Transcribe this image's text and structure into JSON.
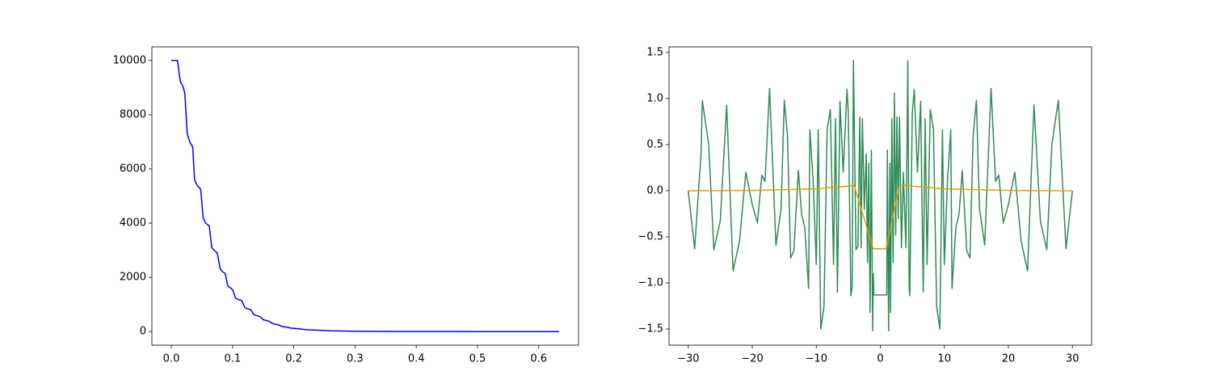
{
  "chart_data": [
    {
      "type": "line",
      "series": [
        {
          "color": "#0000ff",
          "x": [
            0,
            0.01,
            0.013,
            0.015,
            0.019,
            0.022,
            0.026,
            0.03,
            0.035,
            0.038,
            0.042,
            0.048,
            0.052,
            0.056,
            0.062,
            0.066,
            0.07,
            0.075,
            0.08,
            0.084,
            0.088,
            0.092,
            0.096,
            0.1,
            0.105,
            0.11,
            0.115,
            0.12,
            0.125,
            0.13,
            0.135,
            0.14,
            0.145,
            0.15,
            0.155,
            0.16,
            0.165,
            0.17,
            0.175,
            0.18,
            0.185,
            0.19,
            0.195,
            0.2,
            0.21,
            0.22,
            0.24,
            0.26,
            0.3,
            0.35,
            0.4,
            0.45,
            0.5,
            0.55,
            0.633
          ],
          "values": [
            10000,
            10000,
            9500,
            9200,
            9050,
            8800,
            7300,
            7000,
            6800,
            5600,
            5400,
            5250,
            4200,
            4000,
            3900,
            3100,
            3000,
            2900,
            2300,
            2200,
            2150,
            1700,
            1620,
            1550,
            1230,
            1180,
            1150,
            880,
            840,
            800,
            620,
            590,
            550,
            440,
            410,
            380,
            300,
            270,
            250,
            190,
            175,
            160,
            130,
            120,
            100,
            70,
            50,
            30,
            15,
            8,
            4,
            2,
            1,
            0,
            0
          ]
        }
      ],
      "xlim": [
        -0.0317,
        0.665
      ],
      "ylim": [
        -500,
        10500
      ],
      "xticks": [
        {
          "value": 0,
          "label": "0.0"
        },
        0.1,
        0.2,
        0.3,
        0.4,
        0.5,
        0.6
      ],
      "yticks": [
        0,
        2000,
        4000,
        6000,
        8000,
        10000
      ]
    },
    {
      "type": "line",
      "series": [
        {
          "color": "#2e8b57",
          "x": [
            -30,
            -29,
            -28,
            -27.8,
            -26.8,
            -26,
            -25,
            -24,
            -23,
            -22,
            -21,
            -20,
            -19.2,
            -18.5,
            -18,
            -17.3,
            -16.3,
            -15.5,
            -15,
            -14.5,
            -14,
            -13.5,
            -12.8,
            -12.3,
            -11.8,
            -11.2,
            -11,
            -10.5,
            -10,
            -9.7,
            -9.3,
            -8.8,
            -8.3,
            -7.8,
            -7.3,
            -7,
            -6.7,
            -6.3,
            -5.8,
            -5.2,
            -5,
            -4.6,
            -4.4,
            -4.2,
            -3.8,
            -3.5,
            -3.2,
            -3,
            -2.8,
            -2.5,
            -2.2,
            -2,
            -1.8,
            -1.6,
            -1.4,
            -1.2,
            -1.1,
            -1,
            1,
            1.1,
            1.3,
            1.5,
            1.6,
            1.8,
            2,
            2.2,
            2.4,
            2.6,
            2.8,
            3,
            3.3,
            3.6,
            4,
            4.3,
            4.5,
            4.6,
            5,
            5.3,
            5.8,
            6.3,
            6.7,
            7,
            7.3,
            7.8,
            8.3,
            8.8,
            9.3,
            9.7,
            10,
            10.5,
            11,
            11.2,
            11.8,
            12.3,
            12.8,
            13.5,
            14,
            14.5,
            15,
            15.5,
            16.3,
            17.3,
            18,
            18.5,
            19.2,
            20,
            21,
            22,
            23,
            24,
            25,
            26,
            26.8,
            27.8,
            29,
            30
          ],
          "values": [
            0,
            -0.63,
            0.4,
            0.98,
            0.5,
            -0.64,
            -0.33,
            0.93,
            -0.87,
            -0.55,
            0.2,
            -0.15,
            -0.35,
            0.17,
            0.1,
            1.11,
            -0.59,
            -0.2,
            0.98,
            0.6,
            -0.73,
            -0.65,
            0.22,
            -0.25,
            -0.4,
            -1.06,
            0.66,
            0.12,
            -0.8,
            0.66,
            -1.5,
            -1.26,
            0.67,
            0.88,
            -0.8,
            0.78,
            -1.1,
            0.97,
            0.2,
            1.1,
            0.85,
            -1.14,
            -1.05,
            1.41,
            -0.64,
            -0.6,
            0.8,
            -0.62,
            0.78,
            -0.2,
            0.4,
            -0.78,
            0.3,
            -1.32,
            0.44,
            -1.52,
            -0.9,
            -1.13,
            -1.13,
            0.44,
            -1.52,
            0.3,
            -1.32,
            0.78,
            -0.78,
            1.06,
            -0.48,
            0.8,
            -0.3,
            0.8,
            -0.62,
            0.2,
            -0.62,
            1.41,
            -1.05,
            -1.14,
            0.85,
            1.1,
            0.2,
            0.97,
            -1.1,
            0.78,
            -0.8,
            0.88,
            0.67,
            -1.26,
            -1.5,
            0.66,
            -0.8,
            0.12,
            0.66,
            -1.06,
            -0.4,
            -0.25,
            0.22,
            -0.65,
            -0.73,
            0.6,
            0.98,
            -0.2,
            -0.59,
            1.11,
            0.1,
            0.17,
            -0.35,
            -0.15,
            0.2,
            -0.55,
            -0.87,
            0.93,
            -0.33,
            -0.64,
            0.5,
            0.98,
            -0.63,
            0
          ]
        },
        {
          "color": "#e69f00",
          "x": [
            -30,
            -20,
            -10,
            -5,
            -4.1,
            -1.1,
            0.9,
            3,
            4,
            5,
            10,
            20,
            30
          ],
          "values": [
            0,
            0.003,
            0.02,
            0.05,
            0.06,
            -0.63,
            -0.63,
            0.06,
            0.06,
            0.05,
            0.02,
            0.003,
            0
          ]
        }
      ],
      "xlim": [
        -33,
        33
      ],
      "ylim": [
        -1.675,
        1.56
      ],
      "xticks": [
        {
          "value": -30,
          "label": "−30"
        },
        {
          "value": -20,
          "label": "−20"
        },
        {
          "value": -10,
          "label": "−10"
        },
        0,
        10,
        20,
        30
      ],
      "yticks": [
        {
          "value": -1.5,
          "label": "−1.5"
        },
        {
          "value": -1,
          "label": "−1.0"
        },
        {
          "value": -0.5,
          "label": "−0.5"
        },
        {
          "value": 0,
          "label": "0.0"
        },
        0.5,
        {
          "value": 1,
          "label": "1.0"
        },
        1.5
      ]
    }
  ]
}
